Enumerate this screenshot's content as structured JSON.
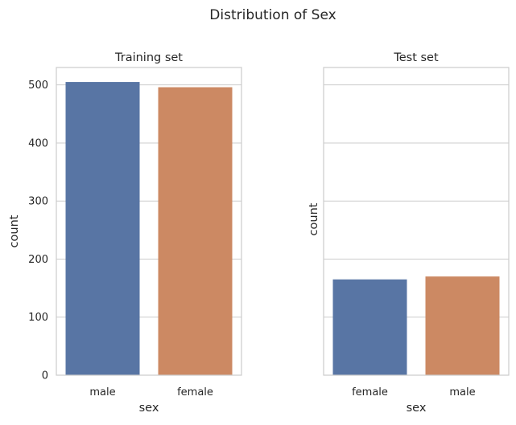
{
  "figure": {
    "suptitle": "Distribution of Sex"
  },
  "colors": {
    "series_blue": "#5875a4",
    "series_orange": "#cc8963"
  },
  "chart_data": [
    {
      "type": "bar",
      "title": "Training set",
      "xlabel": "sex",
      "ylabel": "count",
      "categories": [
        "male",
        "female"
      ],
      "values": [
        505,
        496
      ],
      "bar_colors": [
        "#5875a4",
        "#cc8963"
      ],
      "ylim": [
        0,
        530
      ],
      "yticks": [
        0,
        100,
        200,
        300,
        400,
        500
      ],
      "grid": true,
      "legend": "none"
    },
    {
      "type": "bar",
      "title": "Test set",
      "xlabel": "sex",
      "ylabel": "count",
      "categories": [
        "female",
        "male"
      ],
      "values": [
        165,
        170
      ],
      "bar_colors": [
        "#5875a4",
        "#cc8963"
      ],
      "ylim": [
        0,
        530
      ],
      "yticks": [
        0,
        100,
        200,
        300,
        400,
        500
      ],
      "ytick_labels_shown": false,
      "grid": true,
      "legend": "none"
    }
  ]
}
